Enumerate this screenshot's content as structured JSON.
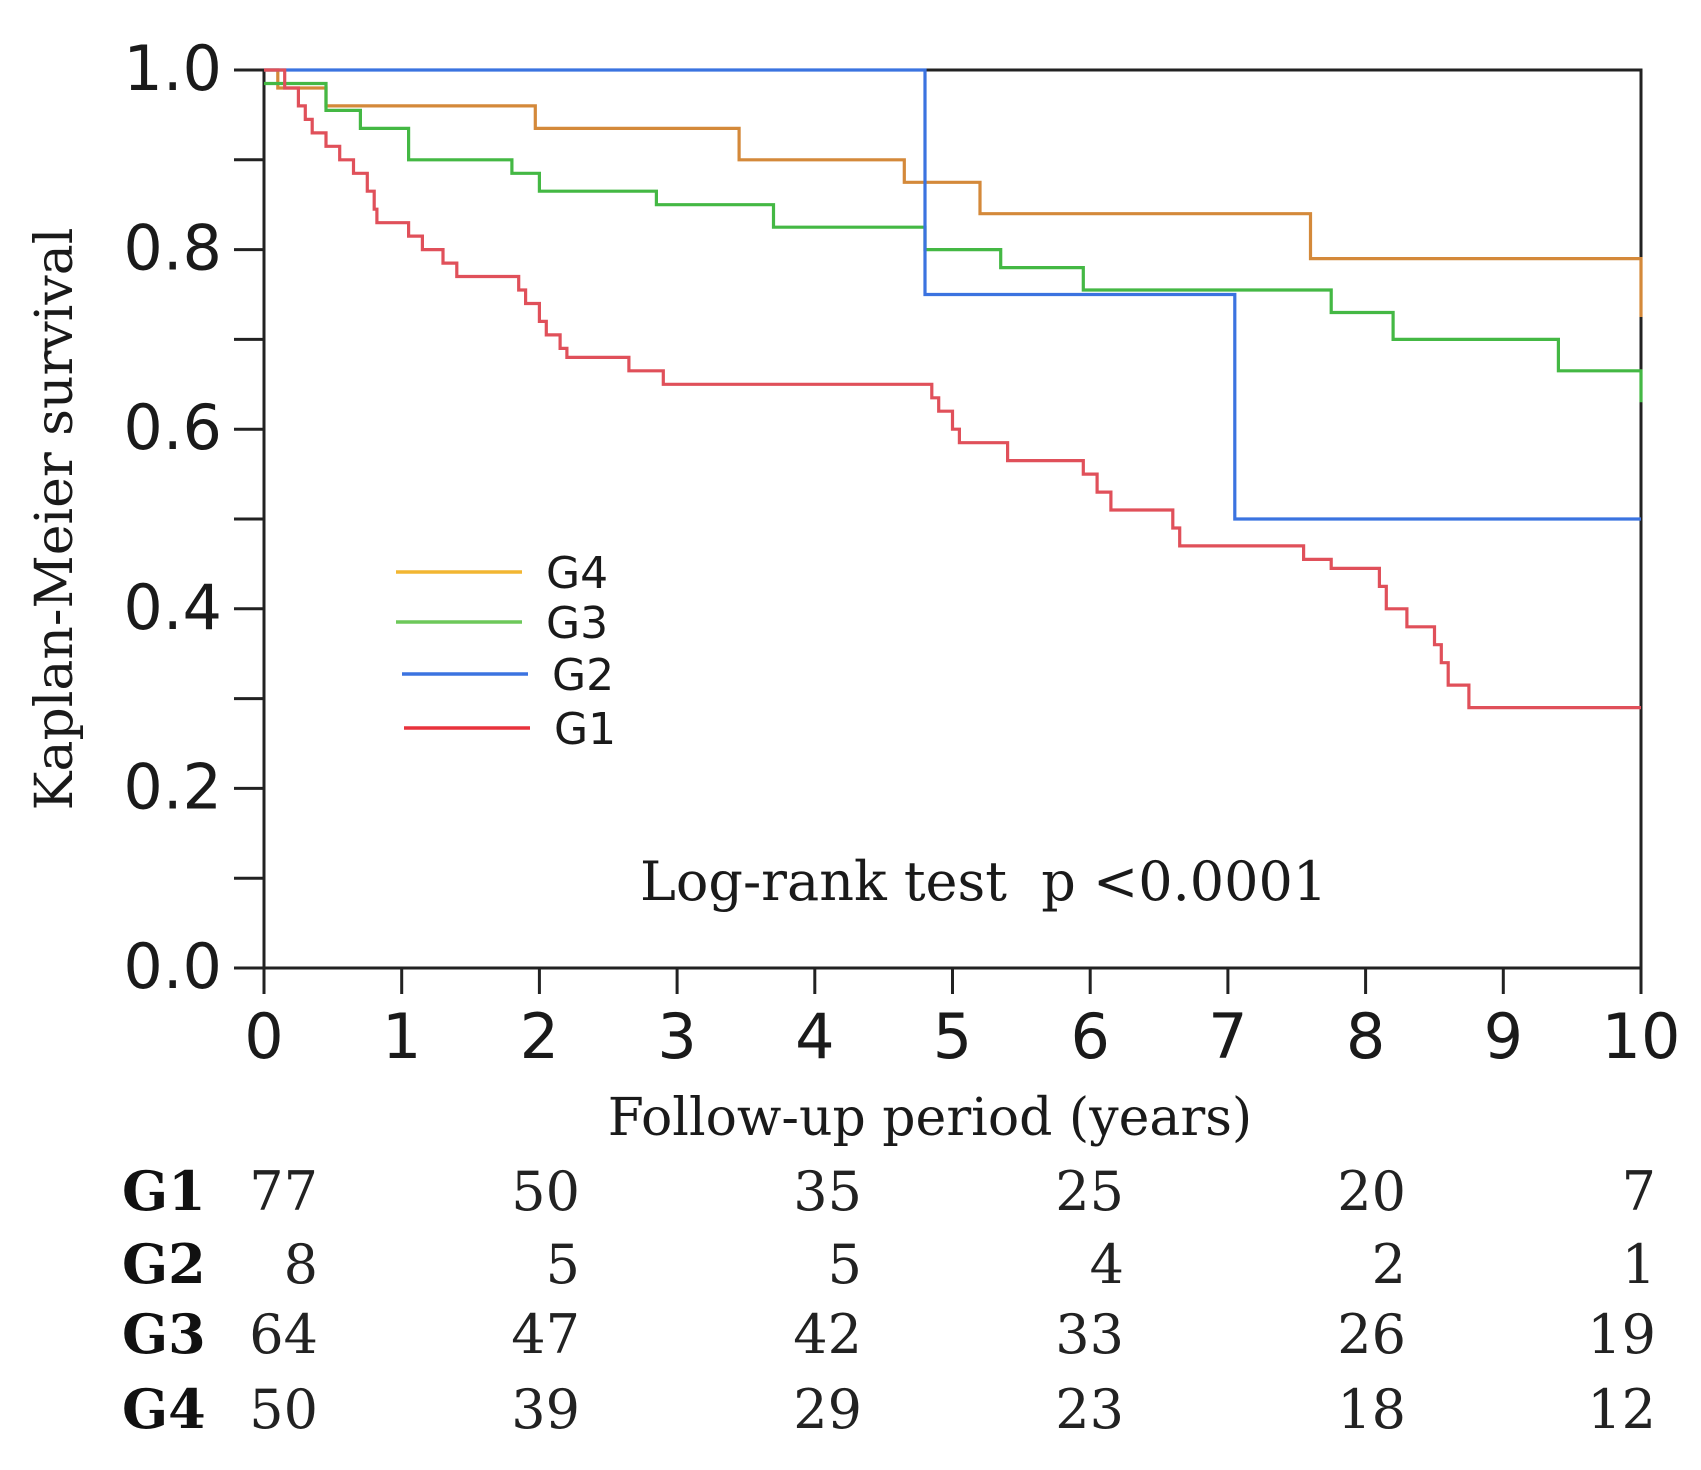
{
  "chart_data": {
    "type": "line",
    "subtype": "kaplan-meier step curves",
    "xlabel": "Follow-up period (years)",
    "ylabel": "Kaplan-Meier survival",
    "xlim": [
      0,
      10
    ],
    "ylim": [
      0,
      1
    ],
    "x_ticks": [
      "0",
      "1",
      "2",
      "3",
      "4",
      "5",
      "6",
      "7",
      "8",
      "9",
      "10"
    ],
    "y_ticks": [
      "0.0",
      "0.2",
      "0.4",
      "0.6",
      "0.8",
      "1.0"
    ],
    "annotation": "Log-rank test  p <0.0001",
    "legend_position": "center-left",
    "legend": [
      "G4",
      "G3",
      "G2",
      "G1"
    ],
    "series": [
      {
        "name": "G4",
        "color": "#d4893a",
        "legend_color": "#f2b632",
        "points": [
          [
            0,
            1.0
          ],
          [
            0.1,
            0.98
          ],
          [
            0.45,
            0.96
          ],
          [
            1.97,
            0.935
          ],
          [
            3.45,
            0.9
          ],
          [
            4.65,
            0.875
          ],
          [
            5.2,
            0.84
          ],
          [
            7.6,
            0.79
          ],
          [
            10,
            0.79
          ],
          [
            10,
            0.725
          ]
        ]
      },
      {
        "name": "G3",
        "color": "#44b844",
        "legend_color": "#6dc85a",
        "points": [
          [
            0,
            0.985
          ],
          [
            0.45,
            0.955
          ],
          [
            0.7,
            0.935
          ],
          [
            1.05,
            0.9
          ],
          [
            1.8,
            0.885
          ],
          [
            2.0,
            0.865
          ],
          [
            2.85,
            0.85
          ],
          [
            3.7,
            0.825
          ],
          [
            4.8,
            0.8
          ],
          [
            5.35,
            0.78
          ],
          [
            5.95,
            0.755
          ],
          [
            7.75,
            0.73
          ],
          [
            8.2,
            0.7
          ],
          [
            9.4,
            0.665
          ],
          [
            10,
            0.665
          ],
          [
            10,
            0.63
          ]
        ]
      },
      {
        "name": "G2",
        "color": "#3b73e0",
        "legend_color": "#3b73e0",
        "points": [
          [
            0,
            1.0
          ],
          [
            4.8,
            1.0
          ],
          [
            4.8,
            0.75
          ],
          [
            7.05,
            0.75
          ],
          [
            7.05,
            0.5
          ],
          [
            10,
            0.5
          ]
        ]
      },
      {
        "name": "G1",
        "color": "#e0505a",
        "legend_color": "#e8323c",
        "points": [
          [
            0,
            1.0
          ],
          [
            0.15,
            0.98
          ],
          [
            0.25,
            0.96
          ],
          [
            0.3,
            0.945
          ],
          [
            0.35,
            0.93
          ],
          [
            0.45,
            0.915
          ],
          [
            0.55,
            0.9
          ],
          [
            0.65,
            0.885
          ],
          [
            0.75,
            0.865
          ],
          [
            0.8,
            0.845
          ],
          [
            0.82,
            0.83
          ],
          [
            1.05,
            0.815
          ],
          [
            1.15,
            0.8
          ],
          [
            1.3,
            0.785
          ],
          [
            1.4,
            0.77
          ],
          [
            1.85,
            0.755
          ],
          [
            1.9,
            0.74
          ],
          [
            2.0,
            0.72
          ],
          [
            2.05,
            0.705
          ],
          [
            2.15,
            0.69
          ],
          [
            2.2,
            0.68
          ],
          [
            2.65,
            0.665
          ],
          [
            2.9,
            0.65
          ],
          [
            4.85,
            0.635
          ],
          [
            4.9,
            0.62
          ],
          [
            5.0,
            0.6
          ],
          [
            5.05,
            0.585
          ],
          [
            5.4,
            0.565
          ],
          [
            5.95,
            0.55
          ],
          [
            6.05,
            0.53
          ],
          [
            6.15,
            0.51
          ],
          [
            6.6,
            0.49
          ],
          [
            6.65,
            0.47
          ],
          [
            7.55,
            0.455
          ],
          [
            7.75,
            0.445
          ],
          [
            8.1,
            0.425
          ],
          [
            8.15,
            0.4
          ],
          [
            8.3,
            0.38
          ],
          [
            8.5,
            0.36
          ],
          [
            8.55,
            0.34
          ],
          [
            8.6,
            0.315
          ],
          [
            8.75,
            0.29
          ],
          [
            10,
            0.29
          ]
        ]
      }
    ]
  },
  "risk_table": {
    "rows": [
      {
        "group": "G1",
        "counts": [
          "77",
          "50",
          "35",
          "25",
          "20",
          "7"
        ]
      },
      {
        "group": "G2",
        "counts": [
          "8",
          "5",
          "5",
          "4",
          "2",
          "1"
        ]
      },
      {
        "group": "G3",
        "counts": [
          "64",
          "47",
          "42",
          "33",
          "26",
          "19"
        ]
      },
      {
        "group": "G4",
        "counts": [
          "50",
          "39",
          "29",
          "23",
          "18",
          "12"
        ]
      }
    ]
  }
}
